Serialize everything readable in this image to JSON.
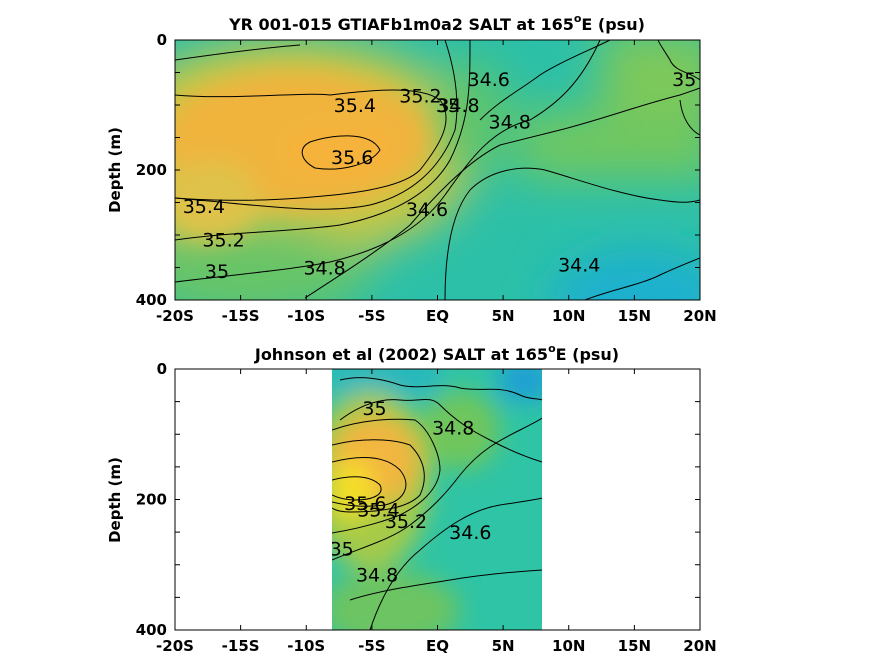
{
  "chart_data": [
    {
      "type": "heatmap",
      "title_main": "YR 001-015 GTIAFb1m0a2 SALT at 165",
      "title_sup": "o",
      "title_tail": "E (psu)",
      "ylabel": "Depth (m)",
      "xlabel": "",
      "x_ticks": [
        "-20S",
        "-15S",
        "-10S",
        "-5S",
        "EQ",
        "5N",
        "10N",
        "15N",
        "20N"
      ],
      "y_ticks": [
        "0",
        "200",
        "400"
      ],
      "xlim": [
        -20,
        20
      ],
      "ylim": [
        0,
        400
      ],
      "contour_levels": [
        34.4,
        34.6,
        34.8,
        35,
        35.2,
        35.4,
        35.6
      ],
      "contour_labels": [
        {
          "text": "35.4",
          "x": -6.3,
          "y": 100
        },
        {
          "text": "35.2",
          "x": -1.3,
          "y": 85
        },
        {
          "text": "35",
          "x": 0.8,
          "y": 100
        },
        {
          "text": "34.8",
          "x": 1.6,
          "y": 100
        },
        {
          "text": "34.6",
          "x": 3.9,
          "y": 60
        },
        {
          "text": "34.8",
          "x": 5.5,
          "y": 125
        },
        {
          "text": "35",
          "x": 18.8,
          "y": 60
        },
        {
          "text": "35.6",
          "x": -6.5,
          "y": 180
        },
        {
          "text": "35.4",
          "x": -17.8,
          "y": 255
        },
        {
          "text": "35.2",
          "x": -16.3,
          "y": 307
        },
        {
          "text": "35",
          "x": -16.8,
          "y": 355
        },
        {
          "text": "34.8",
          "x": -8.6,
          "y": 350
        },
        {
          "text": "34.6",
          "x": -0.8,
          "y": 260
        },
        {
          "text": "34.4",
          "x": 10.8,
          "y": 345
        }
      ]
    },
    {
      "type": "heatmap",
      "title_main": "Johnson et al (2002) SALT at 165",
      "title_sup": "o",
      "title_tail": "E (psu)",
      "ylabel": "Depth (m)",
      "xlabel": "",
      "x_ticks": [
        "-20S",
        "-15S",
        "-10S",
        "-5S",
        "EQ",
        "5N",
        "10N",
        "15N",
        "20N"
      ],
      "y_ticks": [
        "0",
        "200",
        "400"
      ],
      "xlim": [
        -20,
        20
      ],
      "ylim": [
        0,
        400
      ],
      "data_extent": [
        -8,
        8
      ],
      "contour_levels": [
        34.6,
        34.8,
        35,
        35.2,
        35.4,
        35.6
      ],
      "contour_labels": [
        {
          "text": "35",
          "x": -4.8,
          "y": 60
        },
        {
          "text": "34.8",
          "x": 1.2,
          "y": 90
        },
        {
          "text": "35.6",
          "x": -5.5,
          "y": 205
        },
        {
          "text": "35.4",
          "x": -4.5,
          "y": 215
        },
        {
          "text": "35.2",
          "x": -2.4,
          "y": 233
        },
        {
          "text": "35",
          "x": -7.3,
          "y": 275
        },
        {
          "text": "34.6",
          "x": 2.5,
          "y": 250
        },
        {
          "text": "34.8",
          "x": -4.6,
          "y": 315
        }
      ]
    }
  ],
  "colors": {
    "low": "#1aa7d6",
    "mid_low": "#22c3b1",
    "mid": "#8bc94a",
    "mid_high": "#e0c040",
    "high": "#f7b23a",
    "peak": "#f5e61f"
  }
}
